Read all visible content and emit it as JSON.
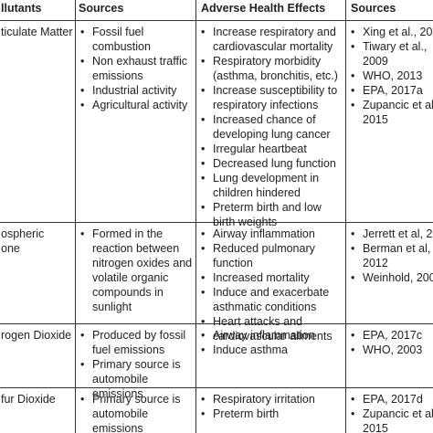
{
  "headers": {
    "pollutants": "llutants",
    "sources": "Sources",
    "effects": "Adverse Health Effects",
    "references": "Sources"
  },
  "rows": [
    {
      "pollutant": "ticulate Matter",
      "sources": [
        "Fossil fuel combustion",
        "Non exhaust traffic emissions",
        "Industrial activity",
        "Agricultural activity"
      ],
      "effects": [
        "Increase respiratory and cardiovascular mortality",
        "Respiratory morbidity (asthma, bronchitis, etc.)",
        "Increase susceptibility to respiratory infections",
        "Increased chance of developing lung cancer",
        "Irregular heartbeat",
        "Decreased lung function",
        "Lung development in children hindered",
        "Preterm birth and low birth weights"
      ],
      "references": [
        "Xing et al., 20",
        "Tiwary et al., 2009",
        "WHO, 2013",
        "EPA, 2017a",
        "Zupancic et al 2015"
      ]
    },
    {
      "pollutant_lines": [
        "ospheric",
        "one"
      ],
      "sources": [
        "Formed in the reaction between nitrogen oxides and volatile organic compounds in sunlight"
      ],
      "effects": [
        "Airway inflammation",
        "Reduced pulmonary function",
        "Increased mortality",
        "Induce and exacerbate asthmatic conditions",
        "Heart attacks and cardiovascular ailments"
      ],
      "references": [
        "Jerrett et al, 20",
        "Berman et al, 2012",
        "Weinhold, 200"
      ]
    },
    {
      "pollutant": "rogen Dioxide",
      "sources": [
        "Produced by fossil fuel emissions",
        "Primary source is automobile emissions"
      ],
      "effects": [
        "Airway inflammation",
        "Induce asthma"
      ],
      "references": [
        "EPA, 2017c",
        "WHO, 2003"
      ]
    },
    {
      "pollutant": "fur Dioxide",
      "sources": [
        "Primary source is automobile emissions"
      ],
      "effects": [
        "Respiratory irritation",
        "Preterm birth"
      ],
      "references": [
        "EPA, 2017d",
        "Zupancic et al 2015"
      ]
    }
  ]
}
